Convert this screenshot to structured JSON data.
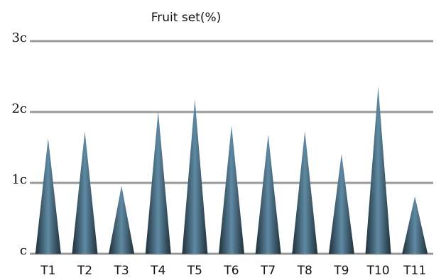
{
  "chart_data": {
    "type": "bar",
    "title": "Fruit set(%)",
    "categories": [
      "T1",
      "T2",
      "T3",
      "T4",
      "T5",
      "T6",
      "T7",
      "T8",
      "T9",
      "T10",
      "T11"
    ],
    "values": [
      1.63,
      1.73,
      0.96,
      2.01,
      2.18,
      1.81,
      1.68,
      1.73,
      1.41,
      2.36,
      0.81
    ],
    "color": "#1e2f3a",
    "ylim": [
      0,
      3
    ],
    "yticks": [
      {
        "value": 0,
        "label": "c"
      },
      {
        "value": 1,
        "label": "1c"
      },
      {
        "value": 2,
        "label": "2c"
      },
      {
        "value": 3,
        "label": "3c"
      }
    ],
    "grid": true
  }
}
